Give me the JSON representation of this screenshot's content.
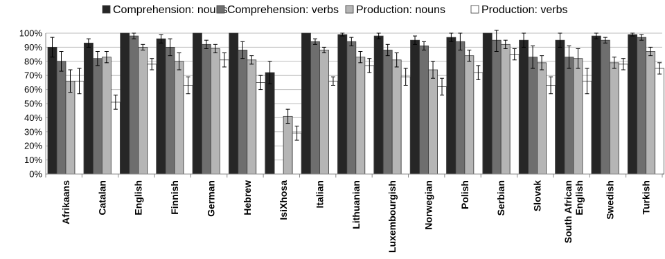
{
  "chart_data": {
    "type": "bar",
    "title": "",
    "xlabel": "",
    "ylabel": "",
    "ylim": [
      0,
      100
    ],
    "y_ticks": [
      "0%",
      "10%",
      "20%",
      "30%",
      "40%",
      "50%",
      "60%",
      "70%",
      "80%",
      "90%",
      "100%"
    ],
    "grid": true,
    "legend_position": "top",
    "error_bars": true,
    "categories": [
      [
        "Afrikaans"
      ],
      [
        "Catalan"
      ],
      [
        "English"
      ],
      [
        "Finnish"
      ],
      [
        "German"
      ],
      [
        "Hebrew"
      ],
      [
        "IsiXhosa"
      ],
      [
        "Italian"
      ],
      [
        "Lithuanian"
      ],
      [
        "Luxembourgish"
      ],
      [
        "Norwegian"
      ],
      [
        "Polish"
      ],
      [
        "Serbian"
      ],
      [
        "Slovak"
      ],
      [
        "South African",
        "English"
      ],
      [
        "Swedish"
      ],
      [
        "Turkish"
      ]
    ],
    "series": [
      {
        "name": "Comprehension: nouns",
        "color": "#262626",
        "values": [
          90,
          93,
          100,
          96,
          100,
          100,
          72,
          100,
          99,
          98,
          95,
          97,
          100,
          95,
          95,
          98,
          99
        ],
        "errors": [
          7,
          3,
          0,
          3,
          0,
          0,
          8,
          0,
          1,
          2,
          3,
          3,
          0,
          5,
          5,
          2,
          1
        ]
      },
      {
        "name": "Comprehension: verbs",
        "color": "#6e6e6e",
        "values": [
          80,
          82,
          98,
          90,
          92,
          88,
          null,
          94,
          94,
          88,
          91,
          94,
          95,
          83,
          83,
          95,
          97
        ],
        "errors": [
          7,
          5,
          2,
          6,
          3,
          6,
          null,
          2,
          3,
          4,
          3,
          6,
          8,
          8,
          8,
          2,
          2
        ]
      },
      {
        "name": "Production: nouns",
        "color": "#b5b5b5",
        "values": [
          66,
          83,
          90,
          80,
          89,
          81,
          41,
          88,
          83,
          81,
          74,
          84,
          92,
          79,
          82,
          79,
          87
        ],
        "errors": [
          8,
          4,
          2,
          6,
          3,
          3,
          5,
          2,
          4,
          5,
          6,
          4,
          3,
          5,
          7,
          4,
          3
        ]
      },
      {
        "name": "Production: verbs",
        "color": "#ffffff",
        "values": [
          66,
          51,
          78,
          63,
          81,
          65,
          29,
          66,
          77,
          69,
          62,
          72,
          85,
          63,
          66,
          78,
          75
        ],
        "errors": [
          9,
          5,
          4,
          6,
          5,
          5,
          5,
          3,
          5,
          6,
          6,
          5,
          4,
          6,
          9,
          4,
          4
        ]
      }
    ]
  }
}
